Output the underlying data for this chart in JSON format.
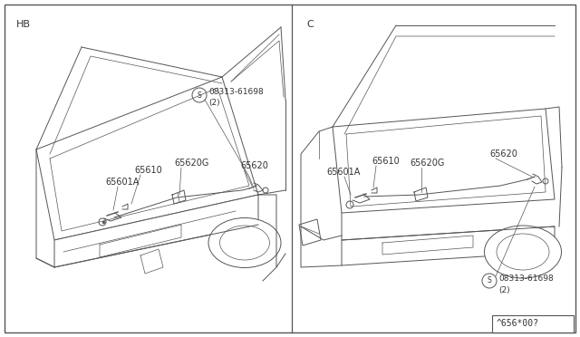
{
  "bg_color": "#ffffff",
  "border_color": "#555555",
  "line_color": "#555555",
  "text_color": "#333333",
  "fig_width": 6.4,
  "fig_height": 3.72,
  "dpi": 100,
  "label_HB": "HB",
  "label_C": "C",
  "bottom_label": "^656*00?",
  "part_labels": {
    "65610": "65610",
    "65601A": "65601A",
    "65620G": "65620G",
    "65620": "65620",
    "bolt": "08313-61698",
    "bolt2": "(2)"
  }
}
